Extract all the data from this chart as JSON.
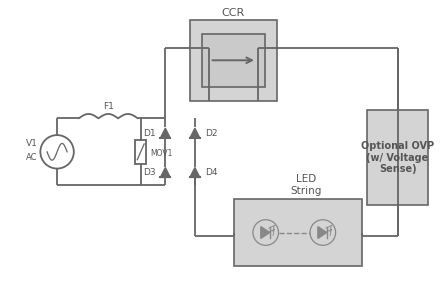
{
  "bg_color": "#ffffff",
  "line_color": "#666666",
  "box_fill": "#d4d4d4",
  "box_fill_inner": "#c8c8c8",
  "text_color": "#555555",
  "ccr_label": "CCR",
  "led_label": "LED\nString",
  "ovp_label": "Optional OVP\n(w/ Voltage\nSense)",
  "lw": 1.3,
  "diode_size": 5
}
